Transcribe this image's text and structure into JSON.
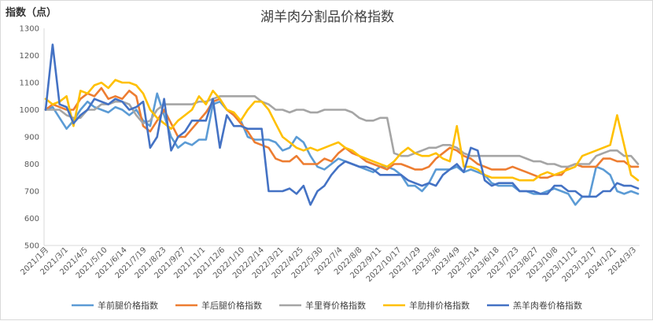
{
  "chart_data": {
    "type": "line",
    "title": "湖羊肉分割品价格指数",
    "ylabel": "指数（点）",
    "ylim": [
      500,
      1300
    ],
    "yticks": [
      500,
      600,
      700,
      800,
      900,
      1000,
      1100,
      1200,
      1300
    ],
    "grid": false,
    "legend_position": "bottom",
    "x_tick_labels": [
      "2021/1月",
      "2021/3/1",
      "2021/4/5",
      "2021/5/10",
      "2021/6/14",
      "2021/7/19",
      "2021/8/23",
      "2021/9/27",
      "2021/11/1",
      "2021/12/6",
      "2022/1/10",
      "2022/2/14",
      "2022/3/21",
      "2022/4/25",
      "2022/5/30",
      "2022/7/4",
      "2022/8/8",
      "2022/9/11",
      "2022/10/17",
      "2023/1/29",
      "2023/3/6",
      "2023/4/9",
      "2023/5/14",
      "2023/6/18",
      "2023/7/23",
      "2023/8/27",
      "2023/10/8",
      "2023/11/12",
      "2023/12/17",
      "2024/1/21",
      "2024/3/3"
    ],
    "series": [
      {
        "name": "羊前腿价格指数",
        "color": "#5b9bd5",
        "values": [
          1000,
          1010,
          970,
          930,
          960,
          1000,
          1030,
          1010,
          1000,
          990,
          1010,
          1000,
          980,
          1000,
          960,
          940,
          1060,
          980,
          900,
          860,
          880,
          870,
          890,
          890,
          1020,
          1030,
          1000,
          980,
          960,
          900,
          890,
          890,
          890,
          880,
          850,
          860,
          900,
          880,
          830,
          790,
          780,
          800,
          820,
          810,
          800,
          790,
          780,
          770,
          790,
          790,
          780,
          760,
          720,
          720,
          700,
          730,
          780,
          780,
          780,
          790,
          770,
          780,
          770,
          760,
          730,
          720,
          720,
          720,
          700,
          700,
          690,
          690,
          700,
          710,
          700,
          690,
          650,
          680,
          680,
          790,
          780,
          760,
          700,
          690,
          700,
          690
        ]
      },
      {
        "name": "羊后腿价格指数",
        "color": "#ed7d31",
        "values": [
          1000,
          1020,
          1010,
          1000,
          1000,
          1040,
          1060,
          1050,
          1080,
          1040,
          1050,
          1040,
          1070,
          1050,
          940,
          920,
          960,
          1000,
          950,
          900,
          900,
          930,
          960,
          990,
          1030,
          1040,
          1000,
          980,
          950,
          920,
          880,
          870,
          860,
          820,
          810,
          810,
          830,
          800,
          800,
          800,
          820,
          810,
          840,
          860,
          840,
          830,
          810,
          800,
          790,
          780,
          800,
          800,
          790,
          780,
          780,
          790,
          820,
          840,
          860,
          850,
          830,
          820,
          800,
          790,
          780,
          780,
          780,
          790,
          780,
          770,
          760,
          750,
          750,
          760,
          760,
          790,
          800,
          790,
          790,
          790,
          820,
          820,
          810,
          810,
          790,
          790
        ]
      },
      {
        "name": "羊里脊价格指数",
        "color": "#a5a5a5",
        "values": [
          1000,
          1000,
          1000,
          980,
          970,
          970,
          1000,
          1000,
          1020,
          1020,
          1030,
          1030,
          1020,
          980,
          950,
          960,
          1000,
          1020,
          1020,
          1020,
          1020,
          1020,
          1030,
          1030,
          1040,
          1050,
          1050,
          1050,
          1050,
          1050,
          1050,
          1030,
          1020,
          1000,
          1000,
          990,
          1000,
          1000,
          990,
          990,
          1000,
          1000,
          1000,
          1000,
          990,
          970,
          960,
          960,
          970,
          970,
          840,
          830,
          830,
          840,
          850,
          860,
          860,
          870,
          870,
          860,
          840,
          830,
          830,
          830,
          830,
          830,
          830,
          830,
          830,
          820,
          810,
          810,
          800,
          800,
          790,
          790,
          800,
          800,
          800,
          830,
          840,
          850,
          850,
          830,
          830,
          800
        ]
      },
      {
        "name": "羊肋排价格指数",
        "color": "#ffc000",
        "values": [
          1040,
          1020,
          1030,
          1050,
          940,
          1070,
          1060,
          1090,
          1100,
          1080,
          1110,
          1100,
          1100,
          1090,
          1060,
          1000,
          970,
          950,
          930,
          960,
          980,
          1000,
          1050,
          1020,
          1070,
          1040,
          1000,
          990,
          960,
          1000,
          1030,
          1030,
          1000,
          950,
          900,
          880,
          860,
          850,
          860,
          850,
          860,
          870,
          880,
          860,
          850,
          830,
          820,
          810,
          800,
          790,
          810,
          840,
          860,
          840,
          830,
          830,
          840,
          820,
          810,
          940,
          790,
          790,
          780,
          760,
          750,
          750,
          750,
          750,
          740,
          740,
          740,
          760,
          770,
          760,
          770,
          780,
          790,
          830,
          840,
          850,
          860,
          870,
          980,
          870,
          760,
          740
        ]
      },
      {
        "name": "羔羊肉卷价格指数",
        "color": "#4472c4",
        "values": [
          1000,
          1240,
          1020,
          1010,
          950,
          980,
          1000,
          1040,
          1030,
          1020,
          1040,
          1030,
          1000,
          1010,
          1030,
          860,
          900,
          1040,
          850,
          900,
          920,
          960,
          960,
          960,
          1040,
          860,
          980,
          940,
          940,
          930,
          930,
          930,
          700,
          700,
          700,
          710,
          690,
          720,
          650,
          700,
          720,
          760,
          790,
          810,
          800,
          790,
          790,
          780,
          760,
          760,
          760,
          760,
          740,
          730,
          720,
          730,
          720,
          760,
          780,
          800,
          770,
          860,
          850,
          740,
          720,
          730,
          730,
          730,
          700,
          700,
          700,
          690,
          690,
          720,
          720,
          700,
          700,
          680,
          680,
          680,
          700,
          700,
          730,
          720,
          720,
          710
        ]
      }
    ]
  }
}
